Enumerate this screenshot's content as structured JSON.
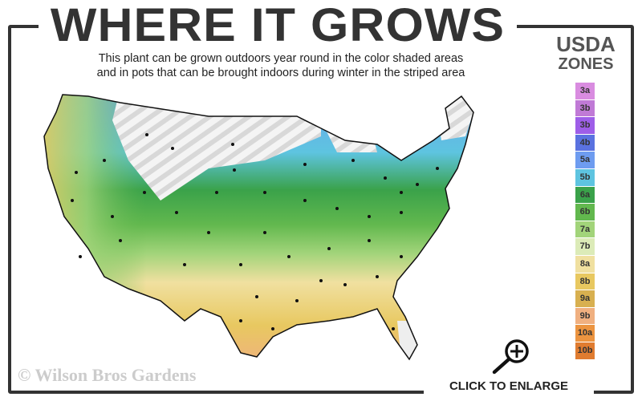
{
  "title": "WHERE IT GROWS",
  "subtitle_lines": [
    "This plant can be grown outdoors year round in the color shaded areas",
    "and in pots that can be brought indoors during winter in the striped area"
  ],
  "legend": {
    "heading_line1": "USDA",
    "heading_line2": "ZONES",
    "zones": [
      {
        "label": "3a",
        "color": "#d98ce0"
      },
      {
        "label": "3b",
        "color": "#c07ad6"
      },
      {
        "label": "3b",
        "color": "#9e5ee8"
      },
      {
        "label": "4b",
        "color": "#5a72e0"
      },
      {
        "label": "5a",
        "color": "#6e9cf0"
      },
      {
        "label": "5b",
        "color": "#5ec4e0"
      },
      {
        "label": "6a",
        "color": "#3aa24a"
      },
      {
        "label": "6b",
        "color": "#62b84e"
      },
      {
        "label": "7a",
        "color": "#a2d47a"
      },
      {
        "label": "7b",
        "color": "#dcebb8"
      },
      {
        "label": "8a",
        "color": "#f0e0a0"
      },
      {
        "label": "8b",
        "color": "#e8c860"
      },
      {
        "label": "9a",
        "color": "#d8b050"
      },
      {
        "label": "9b",
        "color": "#f0b080"
      },
      {
        "label": "10a",
        "color": "#ec9440"
      },
      {
        "label": "10b",
        "color": "#e07c30"
      }
    ]
  },
  "copyright": "© Wilson Bros Gardens",
  "enlarge_label": "CLICK TO ENLARGE",
  "icons": {
    "enlarge": "magnifier-plus-icon"
  }
}
